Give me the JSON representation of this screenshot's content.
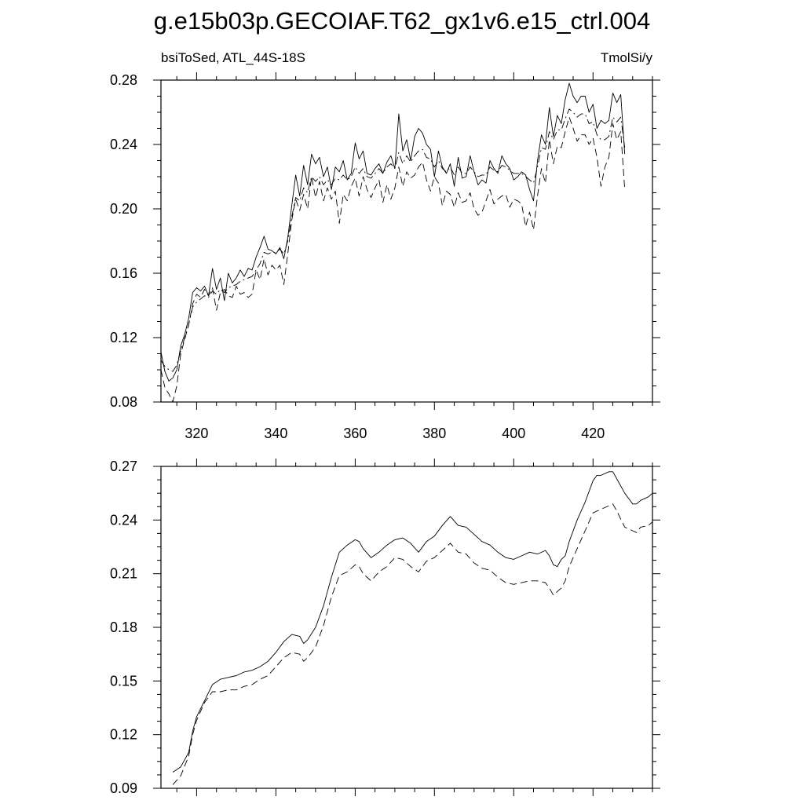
{
  "title": "g.e15b03p.GECOIAF.T62_gx1v6.e15_ctrl.004",
  "chart_data": [
    {
      "type": "line",
      "left_label": "bsiToSed, ATL_44S-18S",
      "right_label": "TmolSi/y",
      "xlim": [
        311,
        435
      ],
      "ylim": [
        0.08,
        0.28
      ],
      "x_ticks": [
        320,
        340,
        360,
        380,
        400,
        420
      ],
      "x_tick_labels": [
        "320",
        "340",
        "360",
        "380",
        "400",
        "420"
      ],
      "y_ticks": [
        0.08,
        0.12,
        0.16,
        0.2,
        0.24,
        0.28
      ],
      "y_tick_labels": [
        "0.08",
        "0.12",
        "0.16",
        "0.20",
        "0.24",
        "0.28"
      ],
      "x_start": 311,
      "series": [
        {
          "style": "solid",
          "values": [
            0.111,
            0.099,
            0.093,
            0.095,
            0.1,
            0.115,
            0.122,
            0.132,
            0.148,
            0.151,
            0.149,
            0.152,
            0.146,
            0.163,
            0.15,
            0.157,
            0.143,
            0.16,
            0.154,
            0.157,
            0.162,
            0.158,
            0.163,
            0.162,
            0.17,
            0.176,
            0.183,
            0.175,
            0.174,
            0.172,
            0.176,
            0.169,
            0.182,
            0.202,
            0.221,
            0.208,
            0.227,
            0.215,
            0.234,
            0.228,
            0.232,
            0.22,
            0.226,
            0.212,
            0.226,
            0.223,
            0.23,
            0.218,
            0.222,
            0.241,
            0.231,
            0.236,
            0.222,
            0.221,
            0.225,
            0.228,
            0.222,
            0.229,
            0.233,
            0.225,
            0.259,
            0.236,
            0.243,
            0.23,
            0.245,
            0.25,
            0.247,
            0.24,
            0.237,
            0.22,
            0.236,
            0.226,
            0.222,
            0.228,
            0.214,
            0.232,
            0.219,
            0.22,
            0.233,
            0.223,
            0.215,
            0.218,
            0.216,
            0.23,
            0.225,
            0.222,
            0.233,
            0.228,
            0.225,
            0.218,
            0.22,
            0.223,
            0.221,
            0.212,
            0.205,
            0.23,
            0.246,
            0.24,
            0.263,
            0.245,
            0.258,
            0.253,
            0.268,
            0.278,
            0.27,
            0.266,
            0.27,
            0.27,
            0.26,
            0.265,
            0.25,
            0.255,
            0.253,
            0.255,
            0.272,
            0.266,
            0.271,
            0.234
          ]
        },
        {
          "style": "dashed",
          "values": [
            0.1,
            0.089,
            0.085,
            0.08,
            0.09,
            0.11,
            0.119,
            0.128,
            0.141,
            0.147,
            0.145,
            0.15,
            0.146,
            0.151,
            0.137,
            0.148,
            0.15,
            0.146,
            0.145,
            0.152,
            0.147,
            0.148,
            0.145,
            0.147,
            0.162,
            0.156,
            0.169,
            0.159,
            0.165,
            0.162,
            0.165,
            0.153,
            0.172,
            0.193,
            0.206,
            0.199,
            0.209,
            0.2,
            0.22,
            0.207,
            0.217,
            0.205,
            0.213,
            0.206,
            0.211,
            0.191,
            0.209,
            0.205,
            0.214,
            0.219,
            0.208,
            0.22,
            0.212,
            0.207,
            0.213,
            0.218,
            0.204,
            0.215,
            0.206,
            0.213,
            0.226,
            0.214,
            0.223,
            0.219,
            0.221,
            0.226,
            0.229,
            0.218,
            0.211,
            0.22,
            0.216,
            0.202,
            0.211,
            0.209,
            0.201,
            0.21,
            0.204,
            0.205,
            0.21,
            0.2,
            0.196,
            0.198,
            0.205,
            0.212,
            0.203,
            0.206,
            0.208,
            0.209,
            0.201,
            0.206,
            0.205,
            0.203,
            0.189,
            0.198,
            0.187,
            0.208,
            0.225,
            0.216,
            0.243,
            0.228,
            0.239,
            0.238,
            0.248,
            0.257,
            0.25,
            0.242,
            0.246,
            0.246,
            0.24,
            0.244,
            0.232,
            0.214,
            0.226,
            0.232,
            0.253,
            0.243,
            0.248,
            0.212
          ]
        },
        {
          "style": "dash-dot",
          "values": [
            0.106,
            0.102,
            0.1,
            0.099,
            0.103,
            0.112,
            0.12,
            0.128,
            0.139,
            0.142,
            0.144,
            0.146,
            0.145,
            0.149,
            0.147,
            0.15,
            0.148,
            0.151,
            0.152,
            0.153,
            0.155,
            0.156,
            0.157,
            0.158,
            0.162,
            0.166,
            0.173,
            0.172,
            0.173,
            0.173,
            0.175,
            0.172,
            0.18,
            0.195,
            0.207,
            0.205,
            0.213,
            0.21,
            0.22,
            0.217,
            0.22,
            0.215,
            0.218,
            0.215,
            0.219,
            0.218,
            0.221,
            0.218,
            0.22,
            0.226,
            0.222,
            0.225,
            0.22,
            0.219,
            0.222,
            0.225,
            0.222,
            0.226,
            0.228,
            0.225,
            0.235,
            0.228,
            0.233,
            0.229,
            0.233,
            0.236,
            0.237,
            0.232,
            0.231,
            0.226,
            0.23,
            0.225,
            0.223,
            0.226,
            0.221,
            0.226,
            0.222,
            0.222,
            0.226,
            0.223,
            0.22,
            0.221,
            0.221,
            0.226,
            0.224,
            0.223,
            0.227,
            0.226,
            0.224,
            0.222,
            0.222,
            0.222,
            0.22,
            0.218,
            0.216,
            0.226,
            0.238,
            0.237,
            0.248,
            0.243,
            0.249,
            0.249,
            0.256,
            0.262,
            0.26,
            0.257,
            0.259,
            0.259,
            0.253,
            0.254,
            0.246,
            0.243,
            0.243,
            0.245,
            0.257,
            0.254,
            0.257,
            0.238
          ]
        }
      ]
    },
    {
      "type": "line",
      "xlim": [
        311,
        435
      ],
      "ylim": [
        0.09,
        0.27
      ],
      "x_ticks": [
        320,
        340,
        360,
        380,
        400,
        420
      ],
      "y_ticks": [
        0.09,
        0.12,
        0.15,
        0.18,
        0.21,
        0.24,
        0.27
      ],
      "y_tick_labels": [
        "0.09",
        "0.12",
        "0.15",
        "0.18",
        "0.21",
        "0.24",
        "0.27"
      ],
      "series": [
        {
          "style": "solid",
          "points": [
            [
              314,
              0.099
            ],
            [
              316,
              0.102
            ],
            [
              318,
              0.11
            ],
            [
              319,
              0.122
            ],
            [
              320,
              0.13
            ],
            [
              322,
              0.139
            ],
            [
              324,
              0.148
            ],
            [
              326,
              0.151
            ],
            [
              328,
              0.152
            ],
            [
              330,
              0.153
            ],
            [
              332,
              0.155
            ],
            [
              334,
              0.156
            ],
            [
              336,
              0.158
            ],
            [
              338,
              0.161
            ],
            [
              340,
              0.166
            ],
            [
              342,
              0.172
            ],
            [
              344,
              0.176
            ],
            [
              346,
              0.175
            ],
            [
              347,
              0.171
            ],
            [
              348,
              0.173
            ],
            [
              350,
              0.18
            ],
            [
              352,
              0.192
            ],
            [
              354,
              0.208
            ],
            [
              356,
              0.222
            ],
            [
              358,
              0.226
            ],
            [
              360,
              0.229
            ],
            [
              361,
              0.228
            ],
            [
              362,
              0.224
            ],
            [
              364,
              0.219
            ],
            [
              366,
              0.222
            ],
            [
              368,
              0.226
            ],
            [
              370,
              0.229
            ],
            [
              372,
              0.23
            ],
            [
              374,
              0.227
            ],
            [
              376,
              0.222
            ],
            [
              378,
              0.228
            ],
            [
              380,
              0.231
            ],
            [
              382,
              0.237
            ],
            [
              384,
              0.242
            ],
            [
              386,
              0.237
            ],
            [
              388,
              0.236
            ],
            [
              390,
              0.232
            ],
            [
              392,
              0.228
            ],
            [
              394,
              0.226
            ],
            [
              396,
              0.222
            ],
            [
              398,
              0.219
            ],
            [
              400,
              0.218
            ],
            [
              402,
              0.22
            ],
            [
              404,
              0.222
            ],
            [
              406,
              0.221
            ],
            [
              408,
              0.223
            ],
            [
              409,
              0.22
            ],
            [
              410,
              0.215
            ],
            [
              411,
              0.214
            ],
            [
              412,
              0.218
            ],
            [
              413,
              0.22
            ],
            [
              414,
              0.228
            ],
            [
              416,
              0.24
            ],
            [
              418,
              0.25
            ],
            [
              420,
              0.262
            ],
            [
              421,
              0.265
            ],
            [
              422,
              0.265
            ],
            [
              424,
              0.267
            ],
            [
              425,
              0.267
            ],
            [
              426,
              0.263
            ],
            [
              428,
              0.255
            ],
            [
              430,
              0.249
            ],
            [
              431,
              0.249
            ],
            [
              432,
              0.251
            ],
            [
              434,
              0.253
            ],
            [
              436,
              0.257
            ]
          ]
        },
        {
          "style": "dashed",
          "points": [
            [
              314,
              0.092
            ],
            [
              316,
              0.097
            ],
            [
              318,
              0.108
            ],
            [
              319,
              0.12
            ],
            [
              320,
              0.128
            ],
            [
              322,
              0.138
            ],
            [
              324,
              0.144
            ],
            [
              326,
              0.144
            ],
            [
              328,
              0.145
            ],
            [
              330,
              0.145
            ],
            [
              332,
              0.147
            ],
            [
              334,
              0.148
            ],
            [
              336,
              0.151
            ],
            [
              338,
              0.153
            ],
            [
              340,
              0.158
            ],
            [
              342,
              0.163
            ],
            [
              344,
              0.166
            ],
            [
              346,
              0.165
            ],
            [
              347,
              0.161
            ],
            [
              348,
              0.163
            ],
            [
              350,
              0.169
            ],
            [
              352,
              0.181
            ],
            [
              354,
              0.197
            ],
            [
              356,
              0.209
            ],
            [
              358,
              0.211
            ],
            [
              360,
              0.215
            ],
            [
              361,
              0.214
            ],
            [
              362,
              0.21
            ],
            [
              364,
              0.206
            ],
            [
              366,
              0.211
            ],
            [
              368,
              0.214
            ],
            [
              370,
              0.219
            ],
            [
              372,
              0.218
            ],
            [
              374,
              0.214
            ],
            [
              376,
              0.211
            ],
            [
              378,
              0.217
            ],
            [
              380,
              0.219
            ],
            [
              382,
              0.223
            ],
            [
              384,
              0.227
            ],
            [
              386,
              0.222
            ],
            [
              388,
              0.221
            ],
            [
              390,
              0.216
            ],
            [
              392,
              0.213
            ],
            [
              394,
              0.212
            ],
            [
              396,
              0.208
            ],
            [
              398,
              0.205
            ],
            [
              400,
              0.204
            ],
            [
              402,
              0.205
            ],
            [
              404,
              0.206
            ],
            [
              406,
              0.206
            ],
            [
              408,
              0.205
            ],
            [
              409,
              0.202
            ],
            [
              410,
              0.198
            ],
            [
              411,
              0.2
            ],
            [
              412,
              0.202
            ],
            [
              413,
              0.206
            ],
            [
              414,
              0.214
            ],
            [
              416,
              0.224
            ],
            [
              418,
              0.234
            ],
            [
              420,
              0.244
            ],
            [
              421,
              0.245
            ],
            [
              422,
              0.246
            ],
            [
              424,
              0.248
            ],
            [
              425,
              0.249
            ],
            [
              426,
              0.245
            ],
            [
              428,
              0.236
            ],
            [
              430,
              0.234
            ],
            [
              431,
              0.233
            ],
            [
              432,
              0.236
            ],
            [
              434,
              0.237
            ],
            [
              436,
              0.241
            ]
          ]
        }
      ]
    }
  ]
}
